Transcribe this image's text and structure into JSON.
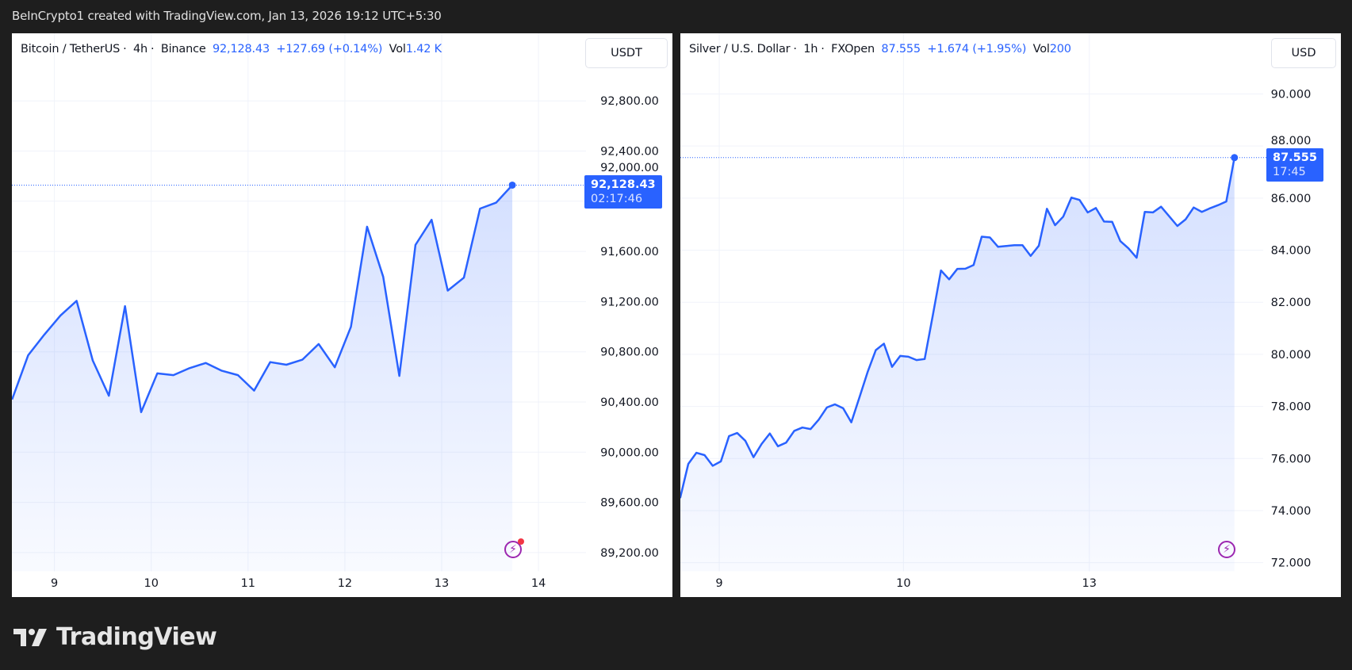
{
  "header": {
    "title": "BeInCrypto1 created with TradingView.com, Jan 13, 2026 19:12 UTC+5:30"
  },
  "footer": {
    "brand": "TradingView"
  },
  "colors": {
    "line": "#2962ff",
    "background": "#1e1e1e",
    "panel": "#ffffff",
    "alert_icon": "#9c27b0",
    "alert_dot": "#f23645"
  },
  "panels": [
    {
      "legend": {
        "symbol": "Bitcoin / TetherUS",
        "interval": "4h",
        "exchange": "Binance",
        "price": "92,128.43",
        "change": "+127.69 (+0.14%)",
        "vol_label": "Vol",
        "vol_value": "1.42 K"
      },
      "currency": "USDT",
      "price_tag": {
        "price": "92,128.43",
        "countdown": "02:17:46"
      },
      "alert_icon": "lightning-alert-icon",
      "alert_badge": true
    },
    {
      "legend": {
        "symbol": "Silver / U.S. Dollar",
        "interval": "1h",
        "exchange": "FXOpen",
        "price": "87.555",
        "change": "+1.674 (+1.95%)",
        "vol_label": "Vol",
        "vol_value": "200"
      },
      "currency": "USD",
      "price_tag": {
        "price": "87.555",
        "countdown": "17:45"
      },
      "alert_icon": "lightning-alert-icon",
      "alert_badge": false
    }
  ],
  "chart_data": [
    {
      "type": "area",
      "title": "Bitcoin / TetherUS · 4h · Binance",
      "x_unit": "bar index (4h bars)",
      "x_ticks": [
        {
          "label": "9",
          "at": 2.625
        },
        {
          "label": "10",
          "at": 8.625
        },
        {
          "label": "11",
          "at": 14.625
        },
        {
          "label": "12",
          "at": 20.625
        },
        {
          "label": "13",
          "at": 26.625
        },
        {
          "label": "14",
          "at": 32.625
        }
      ],
      "y_ticks": [
        "92,800.00",
        "92,400.00",
        "92,000.00",
        "91,600.00",
        "91,200.00",
        "90,800.00",
        "90,400.00",
        "90,000.00",
        "89,600.00",
        "89,200.00"
      ],
      "y_tick_values": [
        92800,
        92400,
        92000,
        91600,
        91200,
        90800,
        90400,
        90000,
        89600,
        89200
      ],
      "ylim": [
        89000,
        93400
      ],
      "grid": true,
      "last_value": 92128.43,
      "values": [
        90420,
        90773,
        90937,
        91089,
        91206,
        90731,
        90450,
        91164,
        90319,
        90628,
        90614,
        90670,
        90711,
        90649,
        90614,
        90491,
        90718,
        90697,
        90738,
        90862,
        90677,
        90999,
        91797,
        91398,
        90608,
        91652,
        91852,
        91288,
        91391,
        91941,
        91989,
        92128.43
      ]
    },
    {
      "type": "area",
      "title": "Silver / U.S. Dollar · 1h · FXOpen",
      "x_unit": "bar index (1h bars)",
      "x_ticks": [
        {
          "label": "9",
          "at": 4.8
        },
        {
          "label": "10",
          "at": 27.4
        },
        {
          "label": "13",
          "at": 50.2
        }
      ],
      "y_ticks": [
        "90.000",
        "88.000",
        "86.000",
        "84.000",
        "82.000",
        "80.000",
        "78.000",
        "76.000",
        "74.000",
        "72.000"
      ],
      "y_tick_values": [
        90,
        88,
        86,
        84,
        82,
        80,
        78,
        76,
        74,
        72
      ],
      "ylim": [
        71.6,
        92
      ],
      "grid": true,
      "last_value": 87.555,
      "values": [
        74.48,
        75.79,
        76.22,
        76.13,
        75.72,
        75.89,
        76.86,
        76.98,
        76.68,
        76.05,
        76.56,
        76.96,
        76.47,
        76.61,
        77.06,
        77.19,
        77.13,
        77.49,
        77.96,
        78.08,
        77.93,
        77.39,
        78.35,
        79.32,
        80.16,
        80.41,
        79.52,
        79.94,
        79.91,
        79.78,
        79.82,
        81.5,
        83.22,
        82.88,
        83.28,
        83.29,
        83.43,
        84.52,
        84.49,
        84.13,
        84.16,
        84.19,
        84.19,
        83.78,
        84.17,
        85.59,
        84.96,
        85.29,
        86.02,
        85.93,
        85.45,
        85.62,
        85.1,
        85.09,
        84.35,
        84.07,
        83.71,
        85.47,
        85.45,
        85.67,
        85.3,
        84.93,
        85.18,
        85.64,
        85.47,
        85.61,
        85.73,
        85.87,
        87.555
      ]
    }
  ]
}
